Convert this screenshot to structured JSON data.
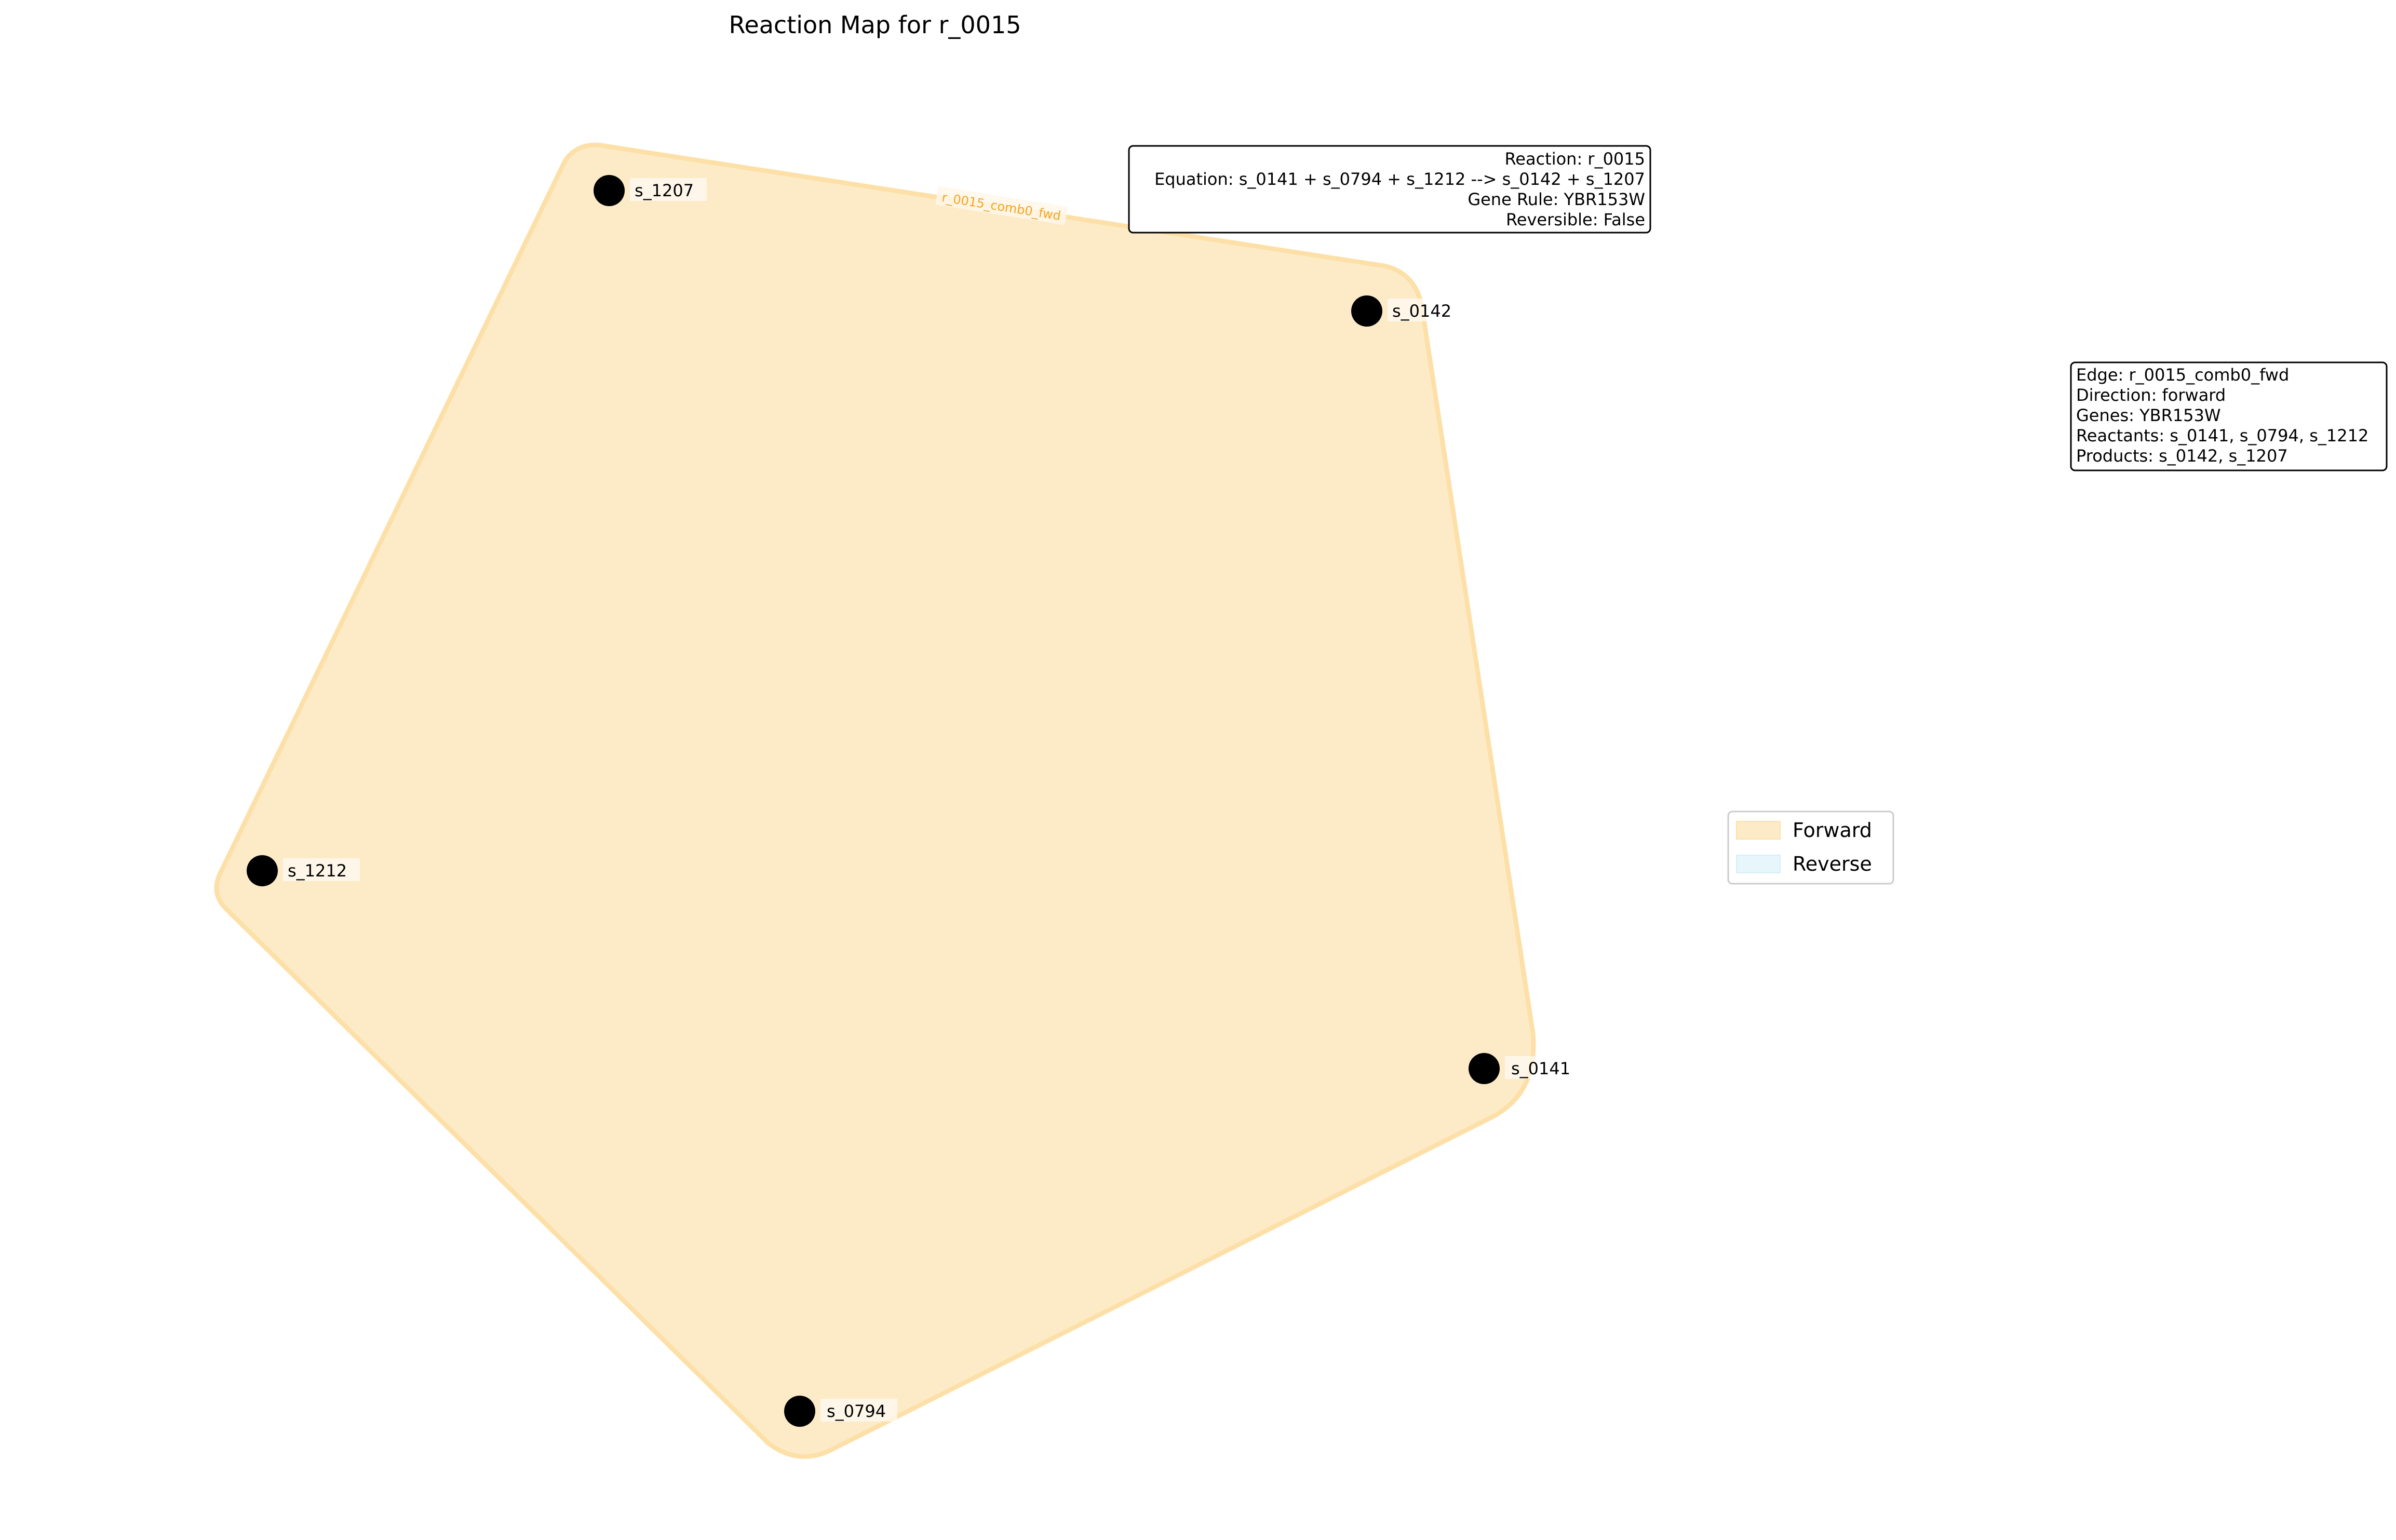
{
  "title": "Reaction Map for r_0015",
  "hyperedge": {
    "label": "r_0015_comb0_fwd",
    "fill_color": "#fdebc8",
    "stroke_color": "#fde0a8",
    "label_color": "#f5a623"
  },
  "nodes": [
    {
      "id": "s_1207",
      "label": "s_1207"
    },
    {
      "id": "s_0142",
      "label": "s_0142"
    },
    {
      "id": "s_1212",
      "label": "s_1212"
    },
    {
      "id": "s_0141",
      "label": "s_0141"
    },
    {
      "id": "s_0794",
      "label": "s_0794"
    }
  ],
  "reaction_info": {
    "lines": [
      "Reaction: r_0015",
      "Equation: s_0141 + s_0794 + s_1212 --> s_0142 + s_1207",
      "Gene Rule: YBR153W",
      "Reversible: False"
    ]
  },
  "edge_info": {
    "lines": [
      "Edge: r_0015_comb0_fwd",
      "Direction: forward",
      "Genes: YBR153W",
      "Reactants: s_0141, s_0794, s_1212",
      "Products: s_0142, s_1207"
    ]
  },
  "legend": {
    "items": [
      {
        "label": "Forward",
        "color": "#fdebc8"
      },
      {
        "label": "Reverse",
        "color": "#e6f6fb"
      }
    ]
  }
}
